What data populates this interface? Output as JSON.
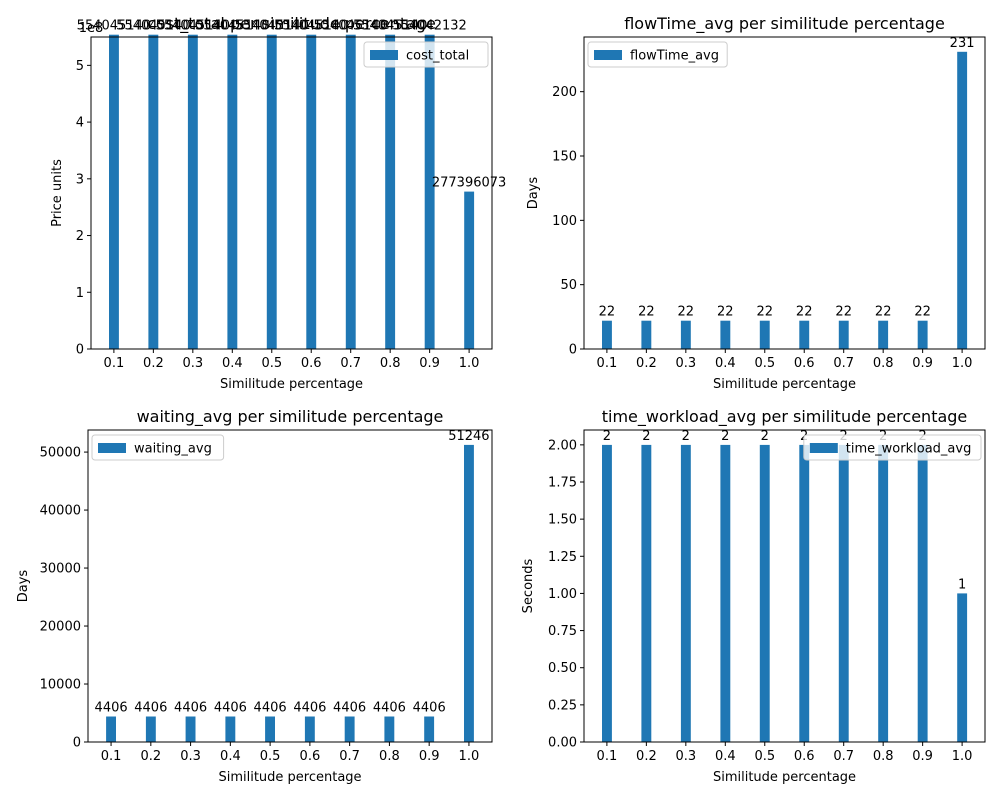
{
  "chart_data": [
    {
      "type": "bar",
      "title": "cost_total per similitude percentage",
      "xlabel": "Similitude percentage",
      "ylabel": "Price units",
      "y_offset_text": "1e8",
      "categories": [
        "0.1",
        "0.2",
        "0.3",
        "0.4",
        "0.5",
        "0.6",
        "0.7",
        "0.8",
        "0.9",
        "1.0"
      ],
      "series": [
        {
          "name": "cost_total",
          "values": [
            554045140,
            554045140,
            554045140,
            554045140,
            554045140,
            554045140,
            554045140,
            554045140,
            554042132,
            277396073
          ],
          "value_labels": [
            "554045140",
            "554045140",
            "554045140",
            "554045140",
            "554045140",
            "554045140",
            "554045140",
            "554045140",
            "554042132",
            "277396073"
          ]
        }
      ],
      "ylim": [
        0,
        5.5
      ],
      "yticks": [
        0,
        1,
        2,
        3,
        4,
        5
      ],
      "ytick_labels": [
        "0",
        "1",
        "2",
        "3",
        "4",
        "5"
      ],
      "value_scale": 100000000,
      "legend": "upper right",
      "grid": false
    },
    {
      "type": "bar",
      "title": "flowTime_avg per similitude percentage",
      "xlabel": "Similitude percentage",
      "ylabel": "Days",
      "categories": [
        "0.1",
        "0.2",
        "0.3",
        "0.4",
        "0.5",
        "0.6",
        "0.7",
        "0.8",
        "0.9",
        "1.0"
      ],
      "series": [
        {
          "name": "flowTime_avg",
          "values": [
            22,
            22,
            22,
            22,
            22,
            22,
            22,
            22,
            22,
            231
          ],
          "value_labels": [
            "22",
            "22",
            "22",
            "22",
            "22",
            "22",
            "22",
            "22",
            "22",
            "231"
          ]
        }
      ],
      "ylim": [
        0,
        242.5
      ],
      "yticks": [
        0,
        50,
        100,
        150,
        200
      ],
      "ytick_labels": [
        "0",
        "50",
        "100",
        "150",
        "200"
      ],
      "legend": "upper left",
      "grid": false
    },
    {
      "type": "bar",
      "title": "waiting_avg per similitude percentage",
      "xlabel": "Similitude percentage",
      "ylabel": "Days",
      "categories": [
        "0.1",
        "0.2",
        "0.3",
        "0.4",
        "0.5",
        "0.6",
        "0.7",
        "0.8",
        "0.9",
        "1.0"
      ],
      "series": [
        {
          "name": "waiting_avg",
          "values": [
            4406,
            4406,
            4406,
            4406,
            4406,
            4406,
            4406,
            4406,
            4406,
            51246
          ],
          "value_labels": [
            "4406",
            "4406",
            "4406",
            "4406",
            "4406",
            "4406",
            "4406",
            "4406",
            "4406",
            "51246"
          ]
        }
      ],
      "ylim": [
        0,
        53808
      ],
      "yticks": [
        0,
        10000,
        20000,
        30000,
        40000,
        50000
      ],
      "ytick_labels": [
        "0",
        "10000",
        "20000",
        "30000",
        "40000",
        "50000"
      ],
      "legend": "upper left",
      "grid": false
    },
    {
      "type": "bar",
      "title": "time_workload_avg per similitude percentage",
      "xlabel": "Similitude percentage",
      "ylabel": "Seconds",
      "categories": [
        "0.1",
        "0.2",
        "0.3",
        "0.4",
        "0.5",
        "0.6",
        "0.7",
        "0.8",
        "0.9",
        "1.0"
      ],
      "series": [
        {
          "name": "time_workload_avg",
          "values": [
            2,
            2,
            2,
            2,
            2,
            2,
            2,
            2,
            2,
            1
          ],
          "value_labels": [
            "2",
            "2",
            "2",
            "2",
            "2",
            "2",
            "2",
            "2",
            "2",
            "1"
          ]
        }
      ],
      "ylim": [
        0,
        2.1
      ],
      "yticks": [
        0,
        0.25,
        0.5,
        0.75,
        1.0,
        1.25,
        1.5,
        1.75,
        2.0
      ],
      "ytick_labels": [
        "0.00",
        "0.25",
        "0.50",
        "0.75",
        "1.00",
        "1.25",
        "1.50",
        "1.75",
        "2.00"
      ],
      "legend": "upper right",
      "grid": false
    }
  ],
  "colors": {
    "bar": "#1f77b4",
    "axis": "#000000",
    "legend_border": "#cccccc"
  }
}
